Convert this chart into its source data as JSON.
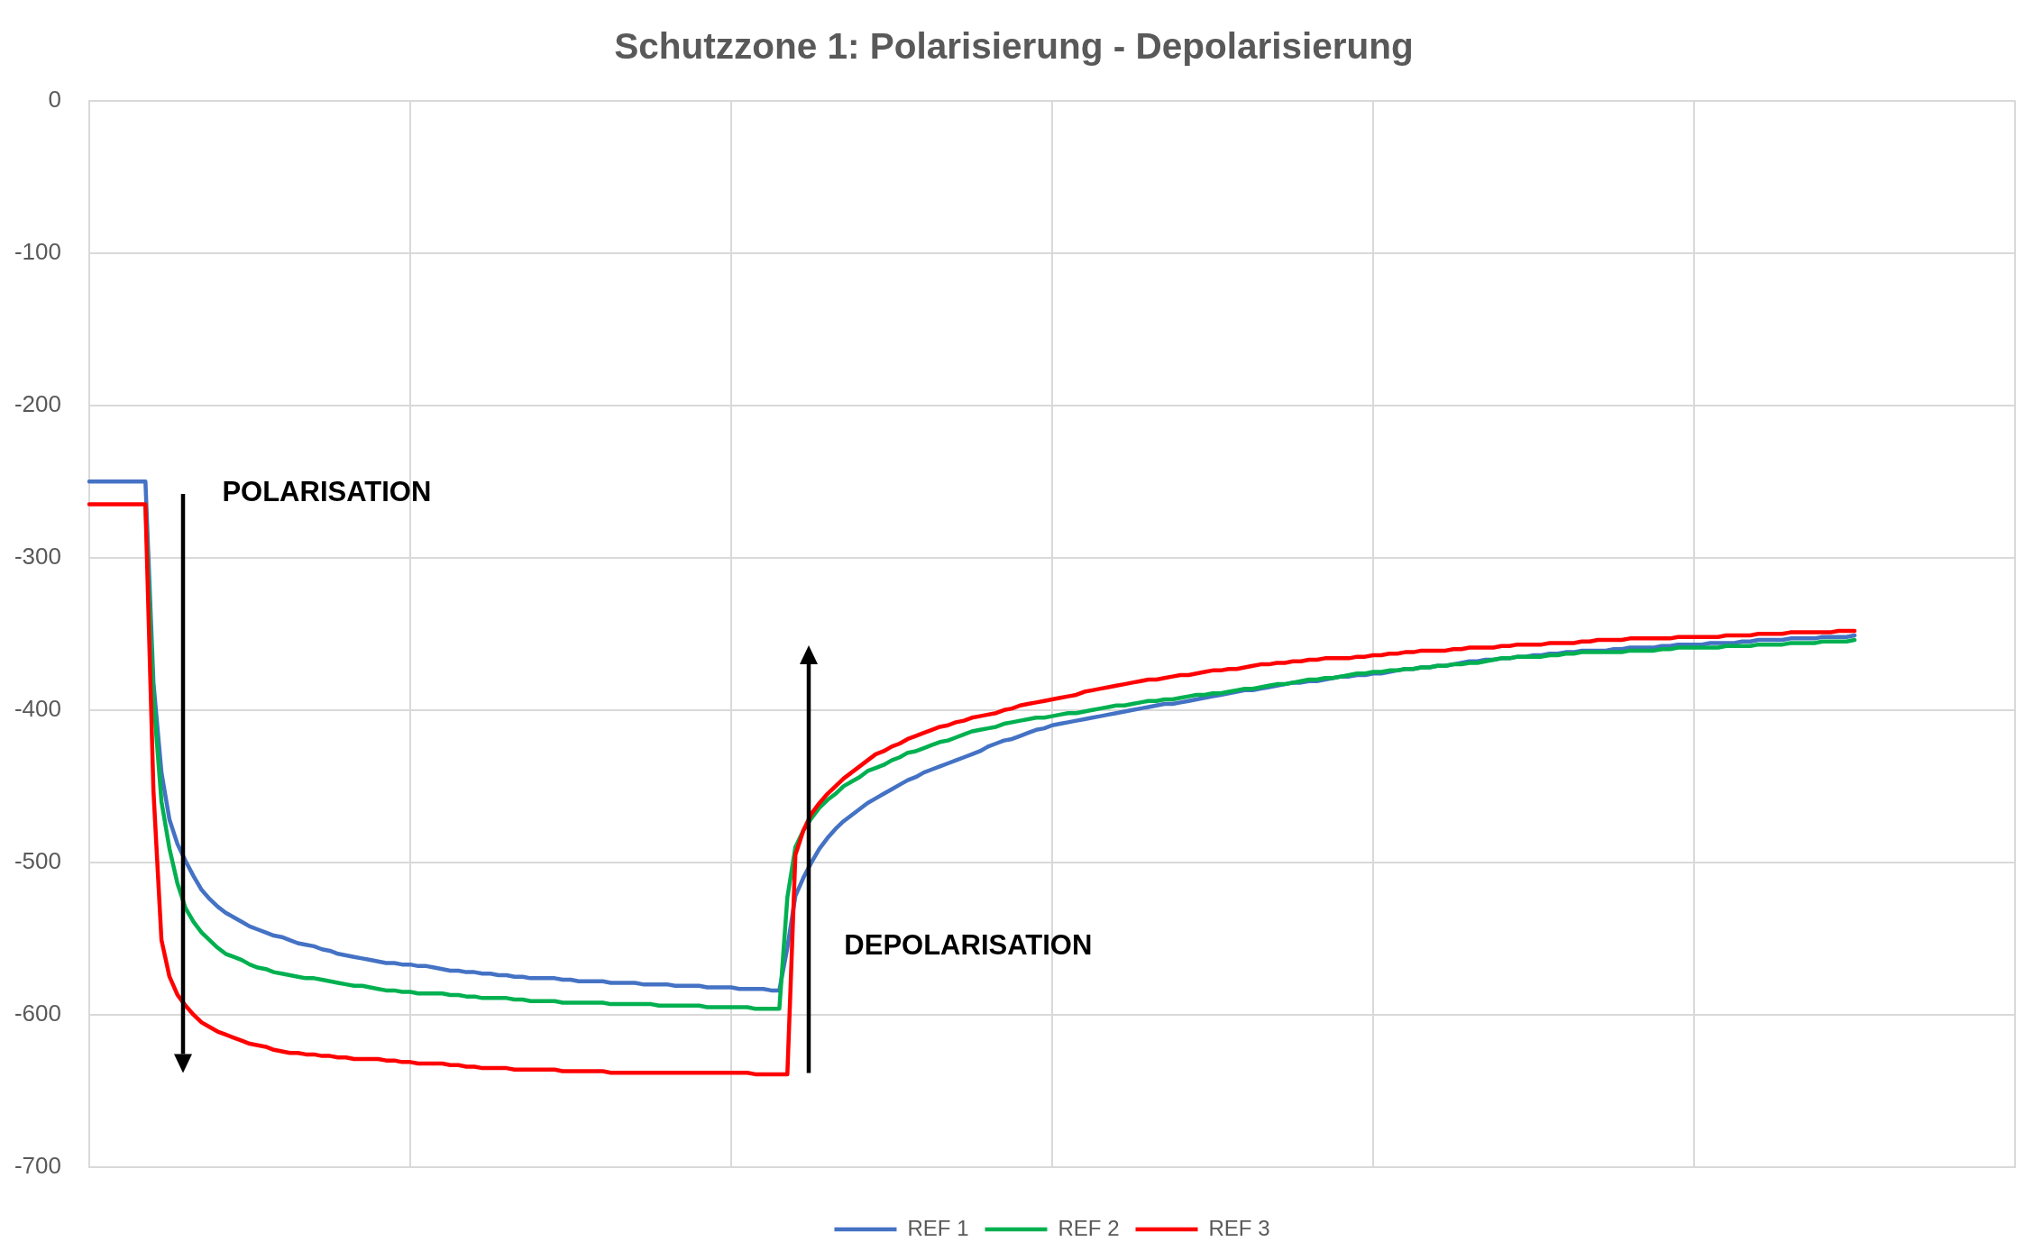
{
  "chart_data": {
    "type": "line",
    "title": "Schutzzone 1: Polarisierung - Depolarisierung",
    "categories": [
      null,
      null,
      null,
      null,
      null,
      null,
      null,
      null,
      null,
      null,
      null,
      null,
      null,
      null,
      null,
      null,
      null,
      null,
      null,
      null,
      null,
      null,
      null,
      null,
      null,
      null,
      null,
      null,
      null,
      null,
      null,
      null,
      null,
      null,
      null,
      null,
      null,
      null,
      null,
      null,
      null,
      null,
      null,
      null,
      null,
      null,
      null,
      null,
      null,
      null,
      null,
      null,
      null,
      null,
      null,
      null,
      null,
      null,
      null,
      null,
      null,
      null,
      null,
      null,
      null,
      null,
      null,
      null,
      null,
      null,
      null,
      null,
      null,
      null,
      null,
      null,
      null,
      null,
      null,
      null,
      null,
      null,
      null,
      null,
      null,
      null,
      null,
      null,
      null,
      null,
      null,
      null,
      null,
      null,
      null,
      null,
      null,
      null,
      null,
      null,
      null,
      null,
      null,
      null,
      null,
      null,
      null,
      null,
      null,
      null,
      null,
      null,
      null,
      null,
      null,
      null,
      null,
      null,
      null,
      null,
      null,
      null,
      null,
      null,
      null,
      null,
      null,
      null,
      null,
      null,
      null,
      null,
      null,
      null,
      null,
      null,
      null,
      null,
      null,
      null,
      null,
      null,
      null,
      null,
      null,
      null,
      null,
      null,
      null,
      null,
      null,
      null,
      null,
      null,
      null,
      null,
      null,
      null,
      null,
      null,
      null,
      null,
      null,
      null,
      null,
      null,
      null,
      null,
      null,
      null,
      null,
      null,
      null,
      null,
      null,
      null,
      null,
      null,
      null,
      null,
      null,
      null,
      null,
      null,
      null,
      null,
      null,
      null,
      null,
      null,
      null,
      null,
      null,
      null,
      null,
      null,
      null,
      null,
      null,
      null,
      null,
      null,
      null,
      null,
      null,
      null,
      null,
      null,
      null,
      null,
      null,
      null,
      null,
      null,
      null,
      null,
      null,
      null,
      null,
      null,
      null,
      null,
      null,
      null,
      null,
      null,
      null,
      null,
      null,
      null,
      null,
      null,
      null,
      null,
      null,
      null,
      null,
      null,
      null,
      null,
      null
    ],
    "ylim": [
      -700,
      0
    ],
    "yticks": [
      -700,
      -600,
      -500,
      -400,
      -300,
      -200,
      -100,
      0
    ],
    "grid": true,
    "legend": "bottom",
    "tick_labels": "y",
    "annotations": [
      "POLARISATION",
      "DEPOLARISATION"
    ],
    "series": [
      {
        "name": "REF 1",
        "color": "#4472c4",
        "values": [
          -250,
          -250,
          -250,
          -250,
          -250,
          -250,
          -250,
          -250,
          -382,
          -441,
          -472,
          -488,
          -499,
          -509,
          -518,
          -524,
          -529,
          -533,
          -536,
          -539,
          -542,
          -544,
          -546,
          -548,
          -549,
          -551,
          -553,
          -554,
          -555,
          -557,
          -558,
          -560,
          -561,
          -562,
          -563,
          -564,
          -565,
          -566,
          -566,
          -567,
          -567,
          -568,
          -568,
          -569,
          -570,
          -571,
          -571,
          -572,
          -572,
          -573,
          -573,
          -574,
          -574,
          -575,
          -575,
          -576,
          -576,
          -576,
          -576,
          -577,
          -577,
          -578,
          -578,
          -578,
          -578,
          -579,
          -579,
          -579,
          -579,
          -580,
          -580,
          -580,
          -580,
          -581,
          -581,
          -581,
          -581,
          -582,
          -582,
          -582,
          -582,
          -583,
          -583,
          -583,
          -583,
          -584,
          -584,
          -556,
          -522,
          -510,
          -500,
          -491,
          -484,
          -478,
          -473,
          -469,
          -465,
          -461,
          -458,
          -455,
          -452,
          -449,
          -446,
          -444,
          -441,
          -439,
          -437,
          -435,
          -433,
          -431,
          -429,
          -427,
          -424,
          -422,
          -420,
          -419,
          -417,
          -415,
          -413,
          -412,
          -410,
          -409,
          -408,
          -407,
          -406,
          -405,
          -404,
          -403,
          -402,
          -401,
          -400,
          -399,
          -398,
          -397,
          -396,
          -396,
          -395,
          -394,
          -393,
          -392,
          -391,
          -390,
          -389,
          -388,
          -387,
          -387,
          -386,
          -385,
          -384,
          -383,
          -382,
          -382,
          -381,
          -381,
          -380,
          -379,
          -378,
          -378,
          -377,
          -377,
          -376,
          -376,
          -375,
          -374,
          -373,
          -373,
          -372,
          -372,
          -371,
          -371,
          -370,
          -369,
          -368,
          -368,
          -367,
          -367,
          -366,
          -366,
          -365,
          -365,
          -364,
          -364,
          -363,
          -363,
          -362,
          -362,
          -361,
          -361,
          -361,
          -361,
          -360,
          -360,
          -359,
          -359,
          -359,
          -359,
          -358,
          -358,
          -357,
          -357,
          -357,
          -357,
          -356,
          -356,
          -356,
          -356,
          -355,
          -355,
          -354,
          -354,
          -354,
          -354,
          -353,
          -353,
          -353,
          -353,
          -352,
          -352,
          -352,
          -352,
          -351,
          null,
          null,
          null,
          null,
          null,
          null,
          null,
          null,
          null,
          null,
          null,
          null,
          null,
          null,
          null,
          null,
          null,
          null,
          null,
          null
        ]
      },
      {
        "name": "REF 2",
        "color": "#00b050",
        "values": [
          null,
          null,
          null,
          null,
          null,
          null,
          null,
          -265,
          -392,
          -460,
          -491,
          -514,
          -530,
          -539,
          -546,
          -551,
          -556,
          -560,
          -562,
          -564,
          -567,
          -569,
          -570,
          -572,
          -573,
          -574,
          -575,
          -576,
          -576,
          -577,
          -578,
          -579,
          -580,
          -581,
          -581,
          -582,
          -583,
          -584,
          -584,
          -585,
          -585,
          -586,
          -586,
          -586,
          -586,
          -587,
          -587,
          -588,
          -588,
          -589,
          -589,
          -589,
          -589,
          -590,
          -590,
          -591,
          -591,
          -591,
          -591,
          -592,
          -592,
          -592,
          -592,
          -592,
          -592,
          -593,
          -593,
          -593,
          -593,
          -593,
          -593,
          -594,
          -594,
          -594,
          -594,
          -594,
          -594,
          -595,
          -595,
          -595,
          -595,
          -595,
          -595,
          -596,
          -596,
          -596,
          -596,
          -523,
          -490,
          -479,
          -471,
          -464,
          -459,
          -455,
          -450,
          -447,
          -444,
          -440,
          -438,
          -436,
          -433,
          -431,
          -428,
          -427,
          -425,
          -423,
          -421,
          -420,
          -418,
          -416,
          -414,
          -413,
          -412,
          -411,
          -409,
          -408,
          -407,
          -406,
          -405,
          -405,
          -404,
          -403,
          -402,
          -402,
          -401,
          -400,
          -399,
          -398,
          -397,
          -397,
          -396,
          -395,
          -394,
          -394,
          -393,
          -393,
          -392,
          -391,
          -390,
          -390,
          -389,
          -389,
          -388,
          -387,
          -386,
          -386,
          -385,
          -384,
          -383,
          -383,
          -382,
          -381,
          -380,
          -380,
          -379,
          -379,
          -378,
          -377,
          -376,
          -376,
          -375,
          -375,
          -374,
          -374,
          -373,
          -373,
          -372,
          -372,
          -371,
          -371,
          -370,
          -370,
          -369,
          -369,
          -368,
          -367,
          -366,
          -366,
          -365,
          -365,
          -365,
          -365,
          -364,
          -364,
          -363,
          -363,
          -362,
          -362,
          -362,
          -362,
          -362,
          -362,
          -361,
          -361,
          -361,
          -361,
          -360,
          -360,
          -359,
          -359,
          -359,
          -359,
          -359,
          -359,
          -358,
          -358,
          -358,
          -358,
          -357,
          -357,
          -357,
          -357,
          -356,
          -356,
          -356,
          -356,
          -355,
          -355,
          -355,
          -355,
          -354,
          null,
          null,
          null,
          null,
          null,
          null,
          null,
          null,
          null,
          null,
          null,
          null,
          null,
          null,
          null,
          null,
          null,
          null,
          null,
          null
        ]
      },
      {
        "name": "REF 3",
        "color": "#ff0000",
        "values": [
          -265,
          -265,
          -265,
          -265,
          -265,
          -265,
          -265,
          -265,
          -453,
          -551,
          -575,
          -587,
          -594,
          -600,
          -605,
          -608,
          -611,
          -613,
          -615,
          -617,
          -619,
          -620,
          -621,
          -623,
          -624,
          -625,
          -625,
          -626,
          -626,
          -627,
          -627,
          -628,
          -628,
          -629,
          -629,
          -629,
          -629,
          -630,
          -630,
          -631,
          -631,
          -632,
          -632,
          -632,
          -632,
          -633,
          -633,
          -634,
          -634,
          -635,
          -635,
          -635,
          -635,
          -636,
          -636,
          -636,
          -636,
          -636,
          -636,
          -637,
          -637,
          -637,
          -637,
          -637,
          -637,
          -638,
          -638,
          -638,
          -638,
          -638,
          -638,
          -638,
          -638,
          -638,
          -638,
          -638,
          -638,
          -638,
          -638,
          -638,
          -638,
          -638,
          -638,
          -639,
          -639,
          -639,
          -639,
          -639,
          -495,
          -479,
          -468,
          -461,
          -455,
          -450,
          -445,
          -441,
          -437,
          -433,
          -429,
          -427,
          -424,
          -422,
          -419,
          -417,
          -415,
          -413,
          -411,
          -410,
          -408,
          -407,
          -405,
          -404,
          -403,
          -402,
          -400,
          -399,
          -397,
          -396,
          -395,
          -394,
          -393,
          -392,
          -391,
          -390,
          -388,
          -387,
          -386,
          -385,
          -384,
          -383,
          -382,
          -381,
          -380,
          -380,
          -379,
          -378,
          -377,
          -377,
          -376,
          -375,
          -374,
          -374,
          -373,
          -373,
          -372,
          -371,
          -370,
          -370,
          -369,
          -369,
          -368,
          -368,
          -367,
          -367,
          -366,
          -366,
          -366,
          -366,
          -365,
          -365,
          -364,
          -364,
          -363,
          -363,
          -362,
          -362,
          -361,
          -361,
          -361,
          -361,
          -360,
          -360,
          -359,
          -359,
          -359,
          -359,
          -358,
          -358,
          -357,
          -357,
          -357,
          -357,
          -356,
          -356,
          -356,
          -356,
          -355,
          -355,
          -354,
          -354,
          -354,
          -354,
          -353,
          -353,
          -353,
          -353,
          -353,
          -353,
          -352,
          -352,
          -352,
          -352,
          -352,
          -352,
          -351,
          -351,
          -351,
          -351,
          -350,
          -350,
          -350,
          -350,
          -349,
          -349,
          -349,
          -349,
          -349,
          -349,
          -348,
          -348,
          -348,
          null,
          null,
          null,
          null,
          null,
          null,
          null,
          null,
          null,
          null,
          null,
          null,
          null,
          null,
          null,
          null,
          null,
          null,
          null,
          null
        ]
      }
    ]
  }
}
